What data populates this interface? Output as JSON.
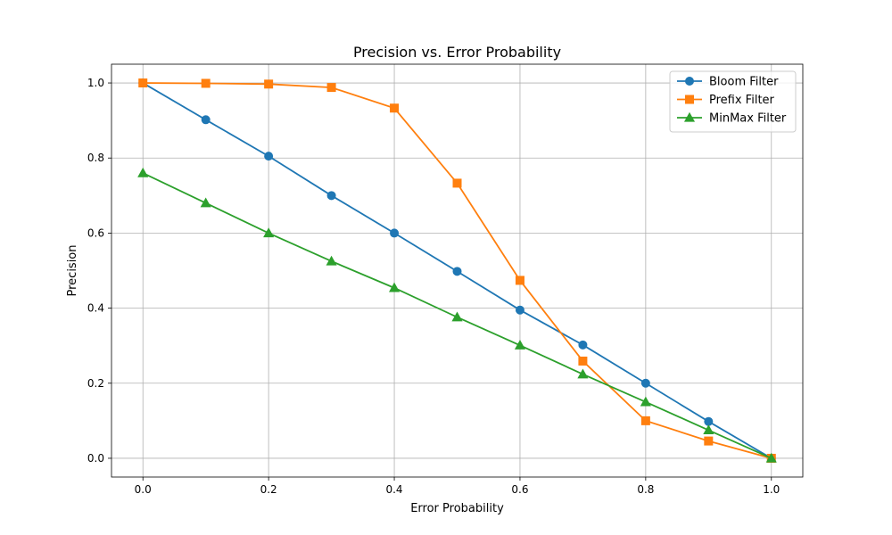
{
  "chart_data": {
    "type": "line",
    "title": "Precision vs. Error Probability",
    "xlabel": "Error Probability",
    "ylabel": "Precision",
    "xlim": [
      -0.05,
      1.05
    ],
    "ylim": [
      -0.05,
      1.05
    ],
    "xticks": [
      0.0,
      0.2,
      0.4,
      0.6,
      0.8,
      1.0
    ],
    "xtick_labels": [
      "0.0",
      "0.2",
      "0.4",
      "0.6",
      "0.8",
      "1.0"
    ],
    "yticks": [
      0.0,
      0.2,
      0.4,
      0.6,
      0.8,
      1.0
    ],
    "ytick_labels": [
      "0.0",
      "0.2",
      "0.4",
      "0.6",
      "0.8",
      "1.0"
    ],
    "grid": true,
    "gridlines_x": [
      0.0,
      0.2,
      0.4,
      0.6,
      0.8,
      1.0
    ],
    "gridlines_y": [
      0.0,
      0.2,
      0.4,
      0.6,
      0.8,
      1.0
    ],
    "legend_position": "top-right",
    "x": [
      0.0,
      0.1,
      0.2,
      0.3,
      0.4,
      0.5,
      0.6,
      0.7,
      0.8,
      0.9,
      1.0
    ],
    "series": [
      {
        "name": "Bloom Filter",
        "color": "#1f77b4",
        "marker": "circle",
        "values": [
          1.0,
          0.902,
          0.805,
          0.7,
          0.6,
          0.498,
          0.395,
          0.302,
          0.2,
          0.098,
          0.0
        ]
      },
      {
        "name": "Prefix Filter",
        "color": "#ff7f0e",
        "marker": "square",
        "values": [
          1.0,
          0.999,
          0.997,
          0.988,
          0.933,
          0.733,
          0.474,
          0.259,
          0.1,
          0.046,
          0.0
        ]
      },
      {
        "name": "MinMax Filter",
        "color": "#2ca02c",
        "marker": "triangle",
        "values": [
          0.76,
          0.68,
          0.6,
          0.525,
          0.454,
          0.376,
          0.301,
          0.224,
          0.15,
          0.075,
          0.0
        ]
      }
    ]
  }
}
